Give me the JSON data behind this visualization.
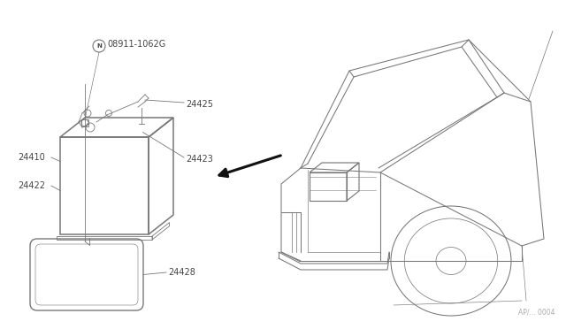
{
  "bg_color": "#ffffff",
  "line_color": "#777777",
  "text_color": "#444444",
  "arrow_color": "#111111",
  "fig_width": 6.4,
  "fig_height": 3.72,
  "dpi": 100,
  "page_num": "AP/... 0004"
}
